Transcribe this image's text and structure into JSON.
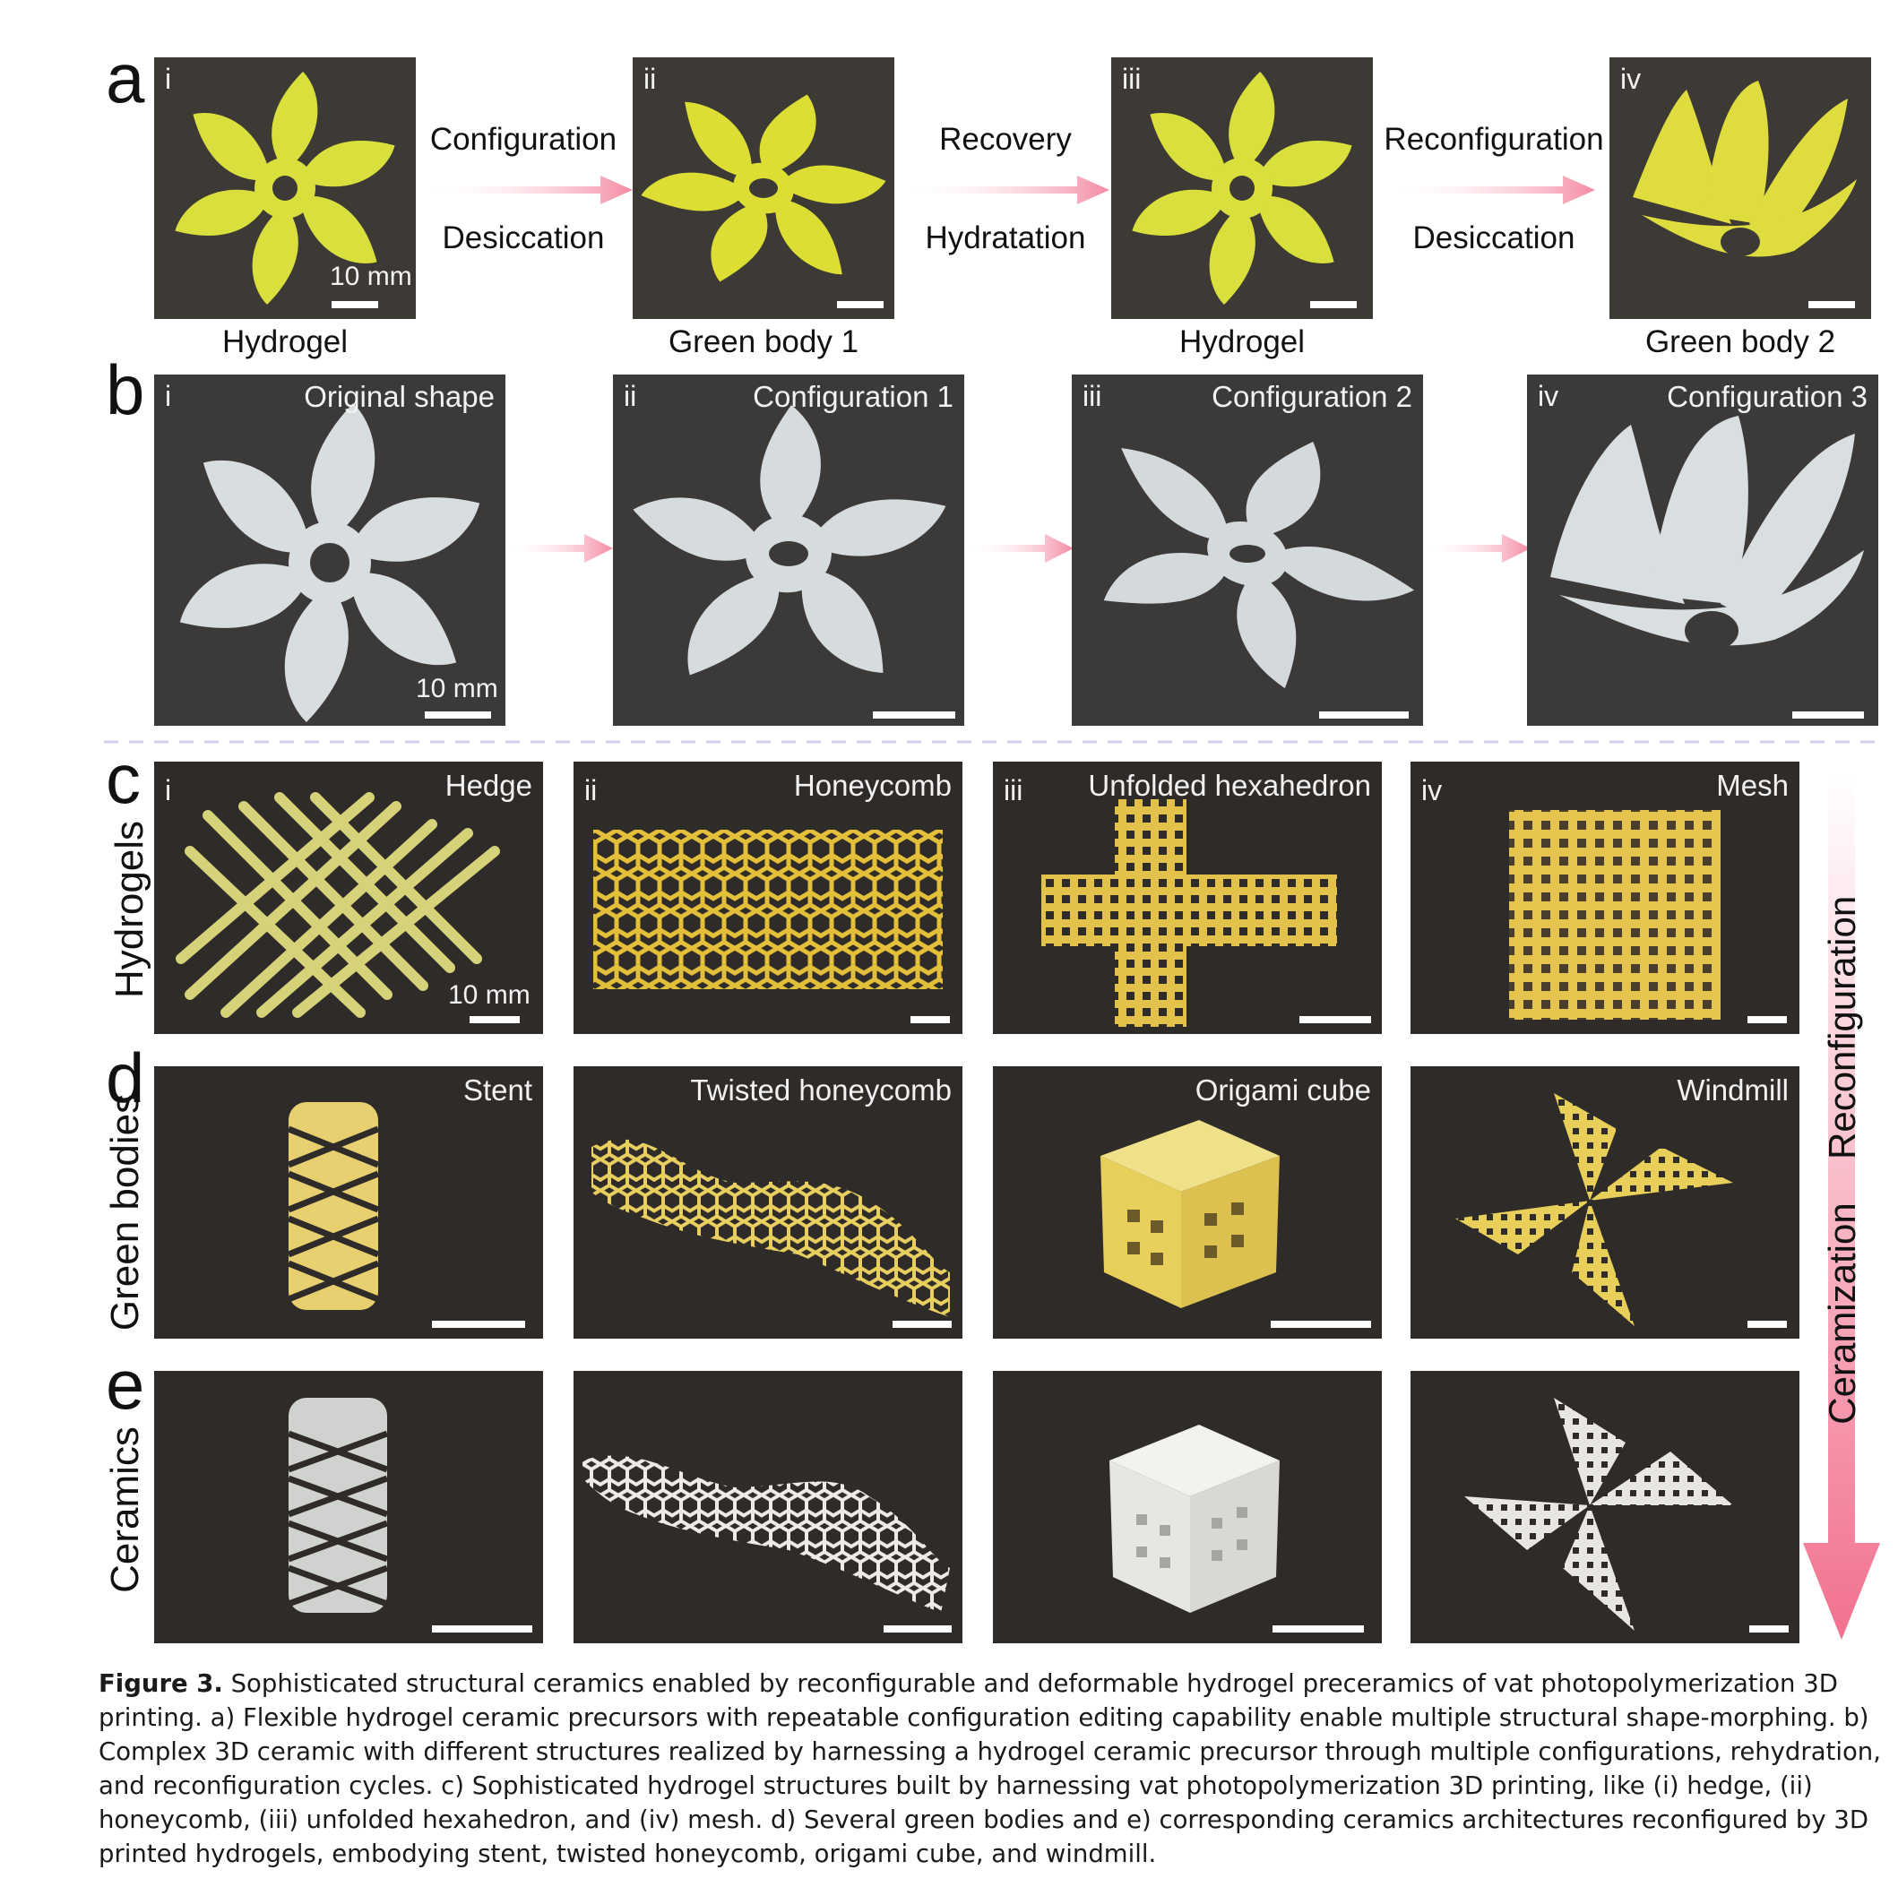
{
  "panel_a": {
    "letter": "a",
    "tiles": [
      {
        "roman": "i",
        "caption": "Hydrogel",
        "scale": "10 mm"
      },
      {
        "roman": "ii",
        "caption": "Green body 1"
      },
      {
        "roman": "iii",
        "caption": "Hydrogel"
      },
      {
        "roman": "iv",
        "caption": "Green body 2"
      }
    ],
    "arrows": [
      {
        "top": "Configuration",
        "bottom": "Desiccation"
      },
      {
        "top": "Recovery",
        "bottom": "Hydratation"
      },
      {
        "top": "Reconfiguration",
        "bottom": "Desiccation"
      }
    ]
  },
  "panel_b": {
    "letter": "b",
    "tiles": [
      {
        "roman": "i",
        "title": "Original shape",
        "scale": "10 mm"
      },
      {
        "roman": "ii",
        "title": "Configuration 1"
      },
      {
        "roman": "iii",
        "title": "Configuration 2"
      },
      {
        "roman": "iv",
        "title": "Configuration 3"
      }
    ]
  },
  "panel_c": {
    "letter": "c",
    "row_label": "Hydrogels",
    "tiles": [
      {
        "roman": "i",
        "title": "Hedge",
        "scale": "10 mm"
      },
      {
        "roman": "ii",
        "title": "Honeycomb"
      },
      {
        "roman": "iii",
        "title": "Unfolded hexahedron"
      },
      {
        "roman": "iv",
        "title": "Mesh"
      }
    ]
  },
  "panel_d": {
    "letter": "d",
    "row_label": "Green bodies",
    "tiles": [
      {
        "title": "Stent"
      },
      {
        "title": "Twisted honeycomb"
      },
      {
        "title": "Origami cube"
      },
      {
        "title": "Windmill"
      }
    ]
  },
  "panel_e": {
    "letter": "e",
    "row_label": "Ceramics"
  },
  "side_arrow": {
    "upper": "Reconfiguration",
    "lower": "Ceramization"
  },
  "caption": {
    "label": "Figure 3.",
    "text": " Sophisticated structural ceramics enabled by reconfigurable and deformable hydrogel preceramics of vat photopolymerization 3D printing. a) Flexible hydrogel ceramic precursors with repeatable configuration editing capability enable multiple structural shape-morphing. b) Complex 3D ceramic with different structures realized by harnessing a hydrogel ceramic precursor through multiple configurations, rehydration, and reconfiguration cycles. c) Sophisticated hydrogel structures built by harnessing vat photopolymerization 3D printing, like (i) hedge, (ii) honeycomb, (iii) unfolded hexahedron, and (iv) mesh. d) Several green bodies and e) corresponding ceramics architectures reconfigured by 3D printed hydrogels, embodying stent, twisted honeycomb, origami cube, and windmill."
  },
  "colors": {
    "hydrogel_yellow": "#d9df3c",
    "green_body_white": "#dfe3e4",
    "yellow_structure": "#e6d66a",
    "ceramic_white": "#e8e8e6",
    "arrow_pink": "#f48aa3",
    "photo_bg": "#3d3a36"
  }
}
